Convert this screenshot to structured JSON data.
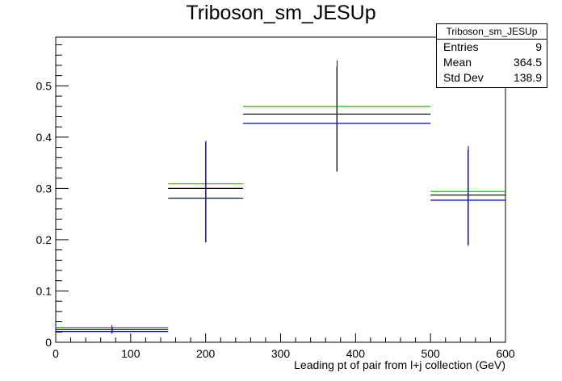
{
  "chart_data": {
    "type": "histogram",
    "title": "Triboson_sm_JESUp",
    "xlabel": "Leading pt of pair from l+j collection (GeV)",
    "ylabel": "",
    "xlim": [
      0,
      600
    ],
    "ylim": [
      0,
      0.595
    ],
    "x_ticks": [
      "0",
      "100",
      "200",
      "300",
      "400",
      "500",
      "600"
    ],
    "y_ticks": [
      "0",
      "0.1",
      "0.2",
      "0.3",
      "0.4",
      "0.5"
    ],
    "bins": [
      {
        "low": 0,
        "high": 150,
        "center": 75
      },
      {
        "low": 150,
        "high": 250,
        "center": 200
      },
      {
        "low": 250,
        "high": 500,
        "center": 375
      },
      {
        "low": 500,
        "high": 600,
        "center": 550
      }
    ],
    "series": [
      {
        "color": "#00cc00",
        "values": [
          0.029,
          0.309,
          0.46,
          0.294
        ]
      },
      {
        "color": "#000000",
        "values": [
          0.025,
          0.3,
          0.445,
          0.287
        ],
        "err_low": [
          0.017,
          0.195,
          0.333,
          0.19
        ],
        "err_high": [
          0.033,
          0.39,
          0.538,
          0.375
        ]
      },
      {
        "color": "#0000cc",
        "values": [
          0.021,
          0.281,
          0.427,
          0.277
        ],
        "err_low": [
          0.018,
          0.195,
          0.333,
          0.188
        ],
        "err_high": [
          0.03,
          0.393,
          0.55,
          0.383
        ]
      }
    ],
    "stats": {
      "name": "Triboson_sm_JESUp",
      "entries_label": "Entries",
      "entries": "9",
      "mean_label": "Mean",
      "mean": "364.5",
      "std_label": "Std Dev",
      "std": "138.9"
    },
    "legend_position": "top-right"
  }
}
